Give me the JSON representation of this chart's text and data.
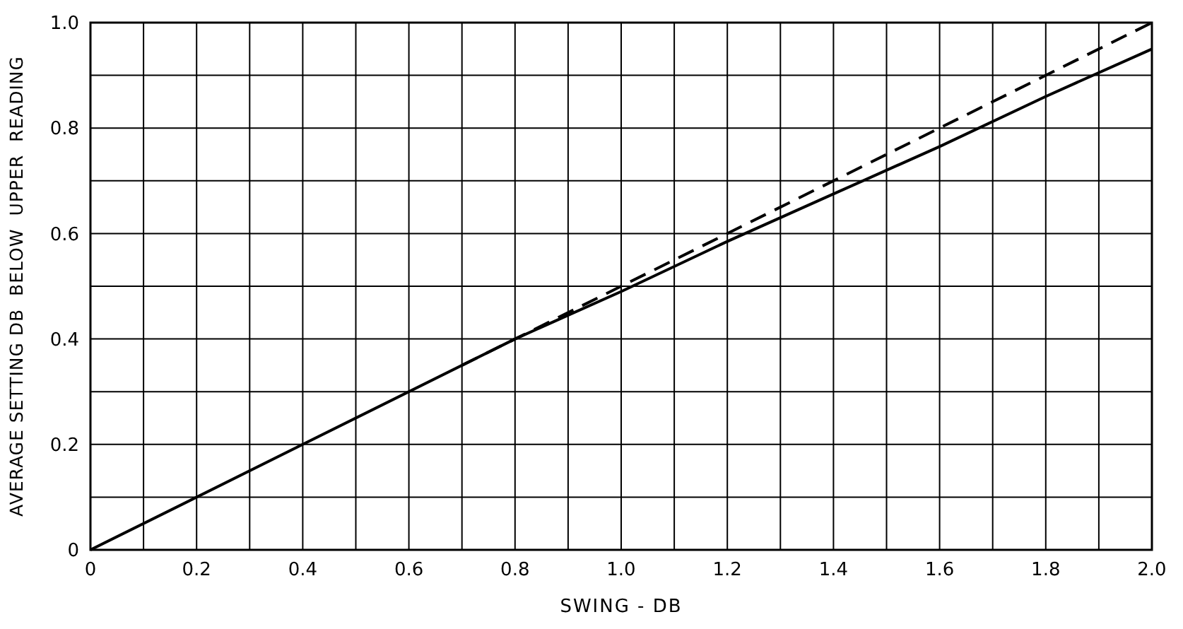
{
  "chart_data": {
    "type": "line",
    "xlabel": "SWING - DB",
    "ylabel": "AVERAGE SETTING DB  BELOW  UPPER  READING",
    "xlim": [
      0,
      2
    ],
    "ylim": [
      0,
      1
    ],
    "xticks": [
      0,
      {
        "value": 0.1,
        "label": null
      },
      0.2,
      {
        "value": 0.3,
        "label": null
      },
      0.4,
      {
        "value": 0.5,
        "label": null
      },
      0.6,
      {
        "value": 0.7,
        "label": null
      },
      0.8,
      {
        "value": 0.9,
        "label": null
      },
      {
        "value": 1,
        "label": "1.0"
      },
      {
        "value": 1.1,
        "label": null
      },
      1.2,
      {
        "value": 1.3,
        "label": null
      },
      1.4,
      {
        "value": 1.5,
        "label": null
      },
      1.6,
      {
        "value": 1.7,
        "label": null
      },
      1.8,
      {
        "value": 1.9,
        "label": null
      },
      {
        "value": 2,
        "label": "2.0"
      }
    ],
    "yticks": [
      0,
      {
        "value": 0.1,
        "label": null
      },
      0.2,
      {
        "value": 0.3,
        "label": null
      },
      0.4,
      {
        "value": 0.5,
        "label": null
      },
      0.6,
      {
        "value": 0.7,
        "label": null
      },
      0.8,
      {
        "value": 0.9,
        "label": null
      },
      {
        "value": 1,
        "label": "1.0"
      }
    ],
    "grid": true,
    "marker": "none",
    "series": [
      {
        "color": "#000000",
        "line_style": "solid",
        "x": [
          0,
          0.4,
          0.8,
          1.0,
          1.2,
          1.4,
          1.6,
          1.8,
          2.0
        ],
        "values": [
          0,
          0.2,
          0.4,
          0.49,
          0.585,
          0.675,
          0.765,
          0.86,
          0.95
        ]
      },
      {
        "color": "#000000",
        "line_style": "dashed",
        "x": [
          0.7,
          2.0
        ],
        "values": [
          0.35,
          1.0
        ]
      }
    ]
  }
}
